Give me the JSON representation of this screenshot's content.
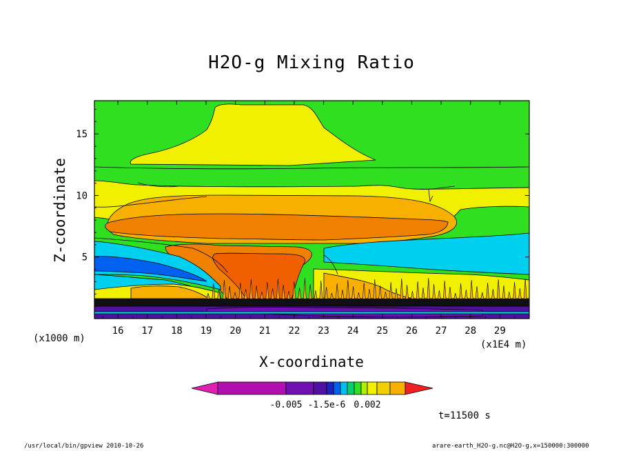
{
  "chart_data": {
    "type": "contour",
    "title": "H2O-g Mixing Ratio",
    "xlabel": "X-coordinate",
    "ylabel": "Z-coordinate",
    "x_unit": "(x1E4 m)",
    "y_unit": "(x1000 m)",
    "xlim": [
      15.2,
      30
    ],
    "ylim": [
      0,
      17.7
    ],
    "x_ticks": [
      16,
      17,
      18,
      19,
      20,
      21,
      22,
      23,
      24,
      25,
      26,
      27,
      28,
      29
    ],
    "y_ticks": [
      5,
      10,
      15
    ],
    "colorbar": {
      "colors": [
        "#e020b0",
        "#b010b0",
        "#7010b0",
        "#5010a0",
        "#2020c0",
        "#0060f0",
        "#00c0f0",
        "#00d070",
        "#30e020",
        "#b0f000",
        "#f0f000",
        "#f0d000",
        "#f8b000",
        "#f08000",
        "#f06000",
        "#f02020"
      ],
      "tick_labels": [
        "-0.005",
        "-1.5e-6",
        "0.002"
      ]
    },
    "time_label": "t=11500 s"
  },
  "footer": {
    "left": "/usr/local/bin/gpview  2010-10-26",
    "right": "arare-earth_H2O-g.nc@H2O-g,x=150000:300000"
  }
}
